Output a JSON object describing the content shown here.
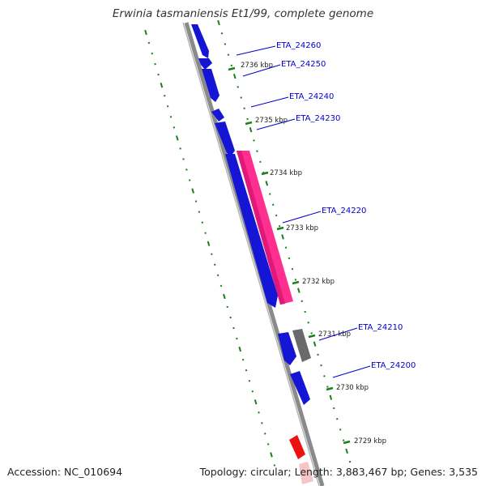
{
  "map": {
    "title": "Erwinia tasmaniensis Et1/99, complete genome",
    "accession": "Accession: NC_010694",
    "stats": "Topology: circular; Length: 3,883,467 bp; Genes: 3,535"
  },
  "colors": {
    "backbone": "#8a8a8a",
    "tick": "#1a7f1a",
    "cds": "#1515d6",
    "highlight": "#ff2f8f",
    "gray_feature": "#6a6a6a",
    "red_feature": "#ee1111",
    "label_line": "#0000cc"
  },
  "ticks": [
    {
      "label": "2736 kbp"
    },
    {
      "label": "2735 kbp"
    },
    {
      "label": "2734 kbp"
    },
    {
      "label": "2733 kbp"
    },
    {
      "label": "2732 kbp"
    },
    {
      "label": "2731 kbp"
    },
    {
      "label": "2730 kbp"
    },
    {
      "label": "2729 kbp"
    }
  ],
  "genes": [
    {
      "label": "ETA_24260"
    },
    {
      "label": "ETA_24250"
    },
    {
      "label": "ETA_24240"
    },
    {
      "label": "ETA_24230"
    },
    {
      "label": "ETA_24220"
    },
    {
      "label": "ETA_24210"
    },
    {
      "label": "ETA_24200"
    }
  ]
}
